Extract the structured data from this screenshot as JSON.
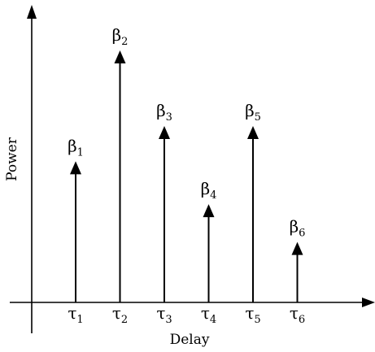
{
  "axes": {
    "x_label": "Delay",
    "y_label": "Power"
  },
  "taps": [
    {
      "power_symbol": "β",
      "power_index": "1",
      "delay_symbol": "τ",
      "delay_index": "1",
      "relative_power": 0.56
    },
    {
      "power_symbol": "β",
      "power_index": "2",
      "delay_symbol": "τ",
      "delay_index": "2",
      "relative_power": 1.0
    },
    {
      "power_symbol": "β",
      "power_index": "3",
      "delay_symbol": "τ",
      "delay_index": "3",
      "relative_power": 0.7
    },
    {
      "power_symbol": "β",
      "power_index": "4",
      "delay_symbol": "τ",
      "delay_index": "4",
      "relative_power": 0.39
    },
    {
      "power_symbol": "β",
      "power_index": "5",
      "delay_symbol": "τ",
      "delay_index": "5",
      "relative_power": 0.7
    },
    {
      "power_symbol": "β",
      "power_index": "6",
      "delay_symbol": "τ",
      "delay_index": "6",
      "relative_power": 0.24
    }
  ],
  "colors": {
    "ink": "#000000",
    "background": "#ffffff"
  }
}
